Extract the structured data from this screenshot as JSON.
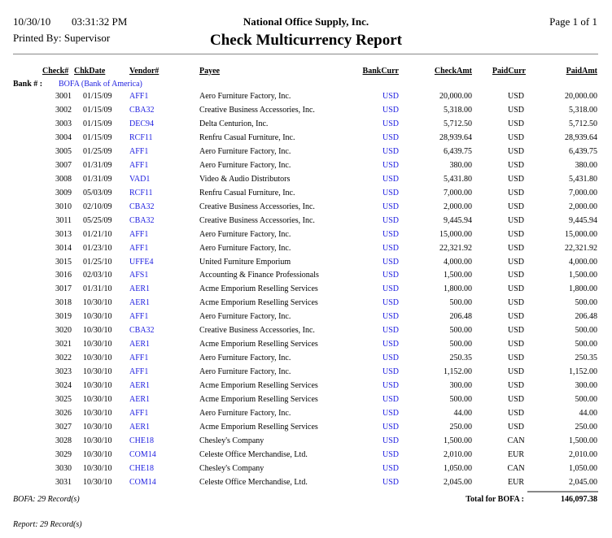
{
  "header": {
    "date": "10/30/10",
    "time": "03:31:32 PM",
    "company": "National Office Supply, Inc.",
    "page": "Page 1 of  1",
    "printed_by": "Printed By: Supervisor",
    "title": "Check Multicurrency Report"
  },
  "columns": {
    "check": "Check#",
    "date": "ChkDate",
    "vendor": "Vendor#",
    "payee": "Payee",
    "bankcurr": "BankCurr",
    "checkamt": "CheckAmt",
    "paidcurr": "PaidCurr",
    "paidamt": "PaidAmt"
  },
  "bank": {
    "label": "Bank # :",
    "value": "BOFA (Bank of America)"
  },
  "colors": {
    "link": "#2020e0"
  },
  "rows": [
    [
      "3001",
      "01/15/09",
      "AFF1",
      "Aero Furniture Factory, Inc.",
      "USD",
      "20,000.00",
      "USD",
      "20,000.00"
    ],
    [
      "3002",
      "01/15/09",
      "CBA32",
      "Creative Business Accessories, Inc.",
      "USD",
      "5,318.00",
      "USD",
      "5,318.00"
    ],
    [
      "3003",
      "01/15/09",
      "DEC94",
      "Delta Centurion, Inc.",
      "USD",
      "5,712.50",
      "USD",
      "5,712.50"
    ],
    [
      "3004",
      "01/15/09",
      "RCF11",
      "Renfru Casual Furniture, Inc.",
      "USD",
      "28,939.64",
      "USD",
      "28,939.64"
    ],
    [
      "3005",
      "01/25/09",
      "AFF1",
      "Aero Furniture Factory, Inc.",
      "USD",
      "6,439.75",
      "USD",
      "6,439.75"
    ],
    [
      "3007",
      "01/31/09",
      "AFF1",
      "Aero Furniture Factory, Inc.",
      "USD",
      "380.00",
      "USD",
      "380.00"
    ],
    [
      "3008",
      "01/31/09",
      "VAD1",
      "Video & Audio Distributors",
      "USD",
      "5,431.80",
      "USD",
      "5,431.80"
    ],
    [
      "3009",
      "05/03/09",
      "RCF11",
      "Renfru Casual Furniture, Inc.",
      "USD",
      "7,000.00",
      "USD",
      "7,000.00"
    ],
    [
      "3010",
      "02/10/09",
      "CBA32",
      "Creative Business Accessories, Inc.",
      "USD",
      "2,000.00",
      "USD",
      "2,000.00"
    ],
    [
      "3011",
      "05/25/09",
      "CBA32",
      "Creative Business Accessories, Inc.",
      "USD",
      "9,445.94",
      "USD",
      "9,445.94"
    ],
    [
      "3013",
      "01/21/10",
      "AFF1",
      "Aero Furniture Factory, Inc.",
      "USD",
      "15,000.00",
      "USD",
      "15,000.00"
    ],
    [
      "3014",
      "01/23/10",
      "AFF1",
      "Aero Furniture Factory, Inc.",
      "USD",
      "22,321.92",
      "USD",
      "22,321.92"
    ],
    [
      "3015",
      "01/25/10",
      "UFFE4",
      "United Furniture Emporium",
      "USD",
      "4,000.00",
      "USD",
      "4,000.00"
    ],
    [
      "3016",
      "02/03/10",
      "AFS1",
      "Accounting & Finance Professionals",
      "USD",
      "1,500.00",
      "USD",
      "1,500.00"
    ],
    [
      "3017",
      "01/31/10",
      "AER1",
      "Acme Emporium Reselling Services",
      "USD",
      "1,800.00",
      "USD",
      "1,800.00"
    ],
    [
      "3018",
      "10/30/10",
      "AER1",
      "Acme Emporium Reselling Services",
      "USD",
      "500.00",
      "USD",
      "500.00"
    ],
    [
      "3019",
      "10/30/10",
      "AFF1",
      "Aero Furniture Factory, Inc.",
      "USD",
      "206.48",
      "USD",
      "206.48"
    ],
    [
      "3020",
      "10/30/10",
      "CBA32",
      "Creative Business Accessories, Inc.",
      "USD",
      "500.00",
      "USD",
      "500.00"
    ],
    [
      "3021",
      "10/30/10",
      "AER1",
      "Acme Emporium Reselling Services",
      "USD",
      "500.00",
      "USD",
      "500.00"
    ],
    [
      "3022",
      "10/30/10",
      "AFF1",
      "Aero Furniture Factory, Inc.",
      "USD",
      "250.35",
      "USD",
      "250.35"
    ],
    [
      "3023",
      "10/30/10",
      "AFF1",
      "Aero Furniture Factory, Inc.",
      "USD",
      "1,152.00",
      "USD",
      "1,152.00"
    ],
    [
      "3024",
      "10/30/10",
      "AER1",
      "Acme Emporium Reselling Services",
      "USD",
      "300.00",
      "USD",
      "300.00"
    ],
    [
      "3025",
      "10/30/10",
      "AER1",
      "Acme Emporium Reselling Services",
      "USD",
      "500.00",
      "USD",
      "500.00"
    ],
    [
      "3026",
      "10/30/10",
      "AFF1",
      "Aero Furniture Factory, Inc.",
      "USD",
      "44.00",
      "USD",
      "44.00"
    ],
    [
      "3027",
      "10/30/10",
      "AER1",
      "Acme Emporium Reselling Services",
      "USD",
      "250.00",
      "USD",
      "250.00"
    ],
    [
      "3028",
      "10/30/10",
      "CHE18",
      "Chesley's Company",
      "USD",
      "1,500.00",
      "CAN",
      "1,500.00"
    ],
    [
      "3029",
      "10/30/10",
      "COM14",
      "Celeste Office Merchandise, Ltd.",
      "USD",
      "2,010.00",
      "EUR",
      "2,010.00"
    ],
    [
      "3030",
      "10/30/10",
      "CHE18",
      "Chesley's Company",
      "USD",
      "1,050.00",
      "CAN",
      "1,050.00"
    ],
    [
      "3031",
      "10/30/10",
      "COM14",
      "Celeste Office Merchandise, Ltd.",
      "USD",
      "2,045.00",
      "EUR",
      "2,045.00"
    ]
  ],
  "footer": {
    "group_count": "BOFA: 29 Record(s)",
    "total_label": "Total for BOFA :",
    "total_value": "146,097.38",
    "report_count": "Report: 29 Record(s)"
  }
}
